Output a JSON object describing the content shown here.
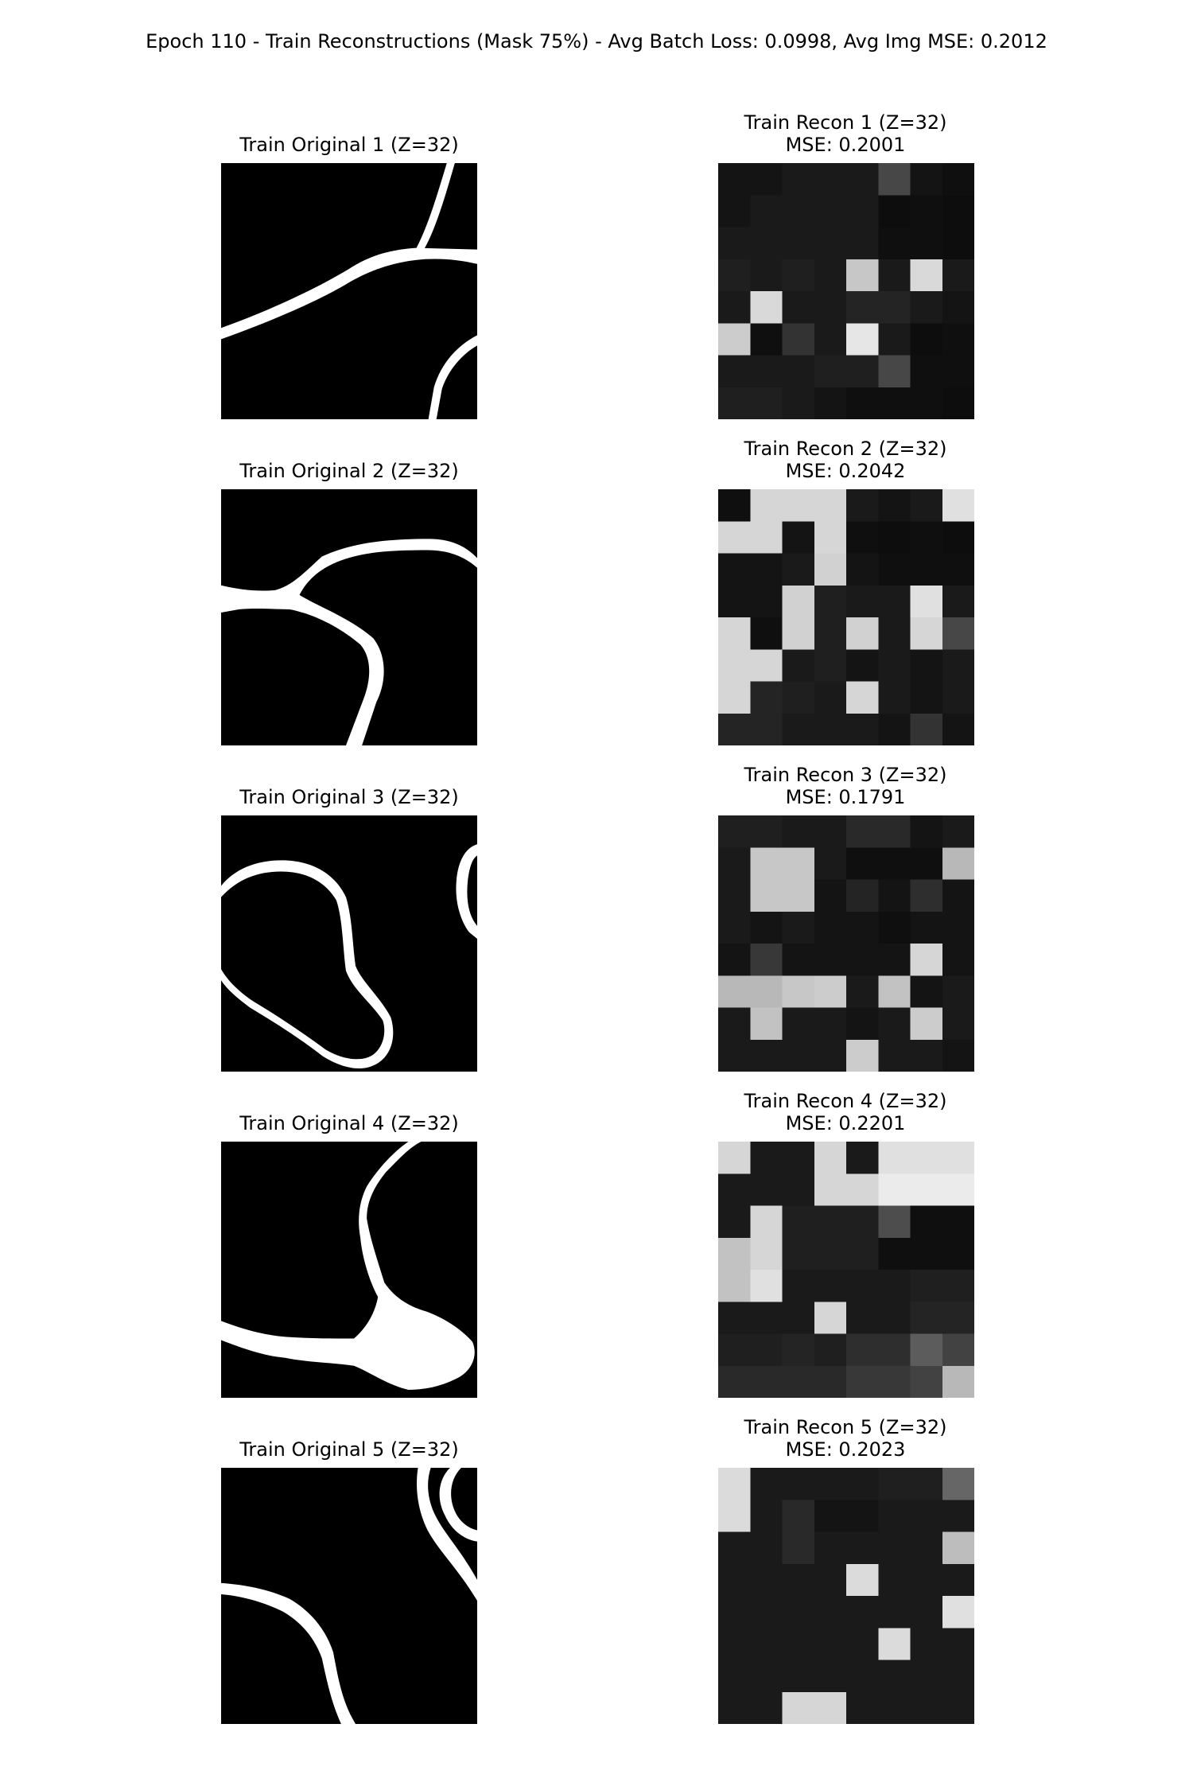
{
  "figure": {
    "title": "Epoch 110 - Train Reconstructions (Mask 75%) - Avg Batch Loss: 0.0998, Avg Img MSE: 0.2012"
  },
  "rows": [
    {
      "original": {
        "title": "Train Original 1 (Z=32)"
      },
      "recon": {
        "title": "Train Recon 1 (Z=32)",
        "mse": "MSE: 0.2001",
        "patch_gray": [
          [
            0.08,
            0.08,
            0.1,
            0.1,
            0.1,
            0.28,
            0.08,
            0.06
          ],
          [
            0.08,
            0.1,
            0.1,
            0.1,
            0.1,
            0.05,
            0.06,
            0.05
          ],
          [
            0.1,
            0.1,
            0.1,
            0.1,
            0.1,
            0.06,
            0.06,
            0.05
          ],
          [
            0.12,
            0.1,
            0.12,
            0.1,
            0.78,
            0.1,
            0.85,
            0.1
          ],
          [
            0.1,
            0.85,
            0.1,
            0.1,
            0.14,
            0.14,
            0.1,
            0.08
          ],
          [
            0.8,
            0.06,
            0.2,
            0.1,
            0.9,
            0.1,
            0.05,
            0.06
          ],
          [
            0.1,
            0.1,
            0.1,
            0.12,
            0.12,
            0.28,
            0.06,
            0.06
          ],
          [
            0.12,
            0.12,
            0.1,
            0.08,
            0.06,
            0.06,
            0.06,
            0.05
          ]
        ]
      }
    },
    {
      "original": {
        "title": "Train Original 2 (Z=32)"
      },
      "recon": {
        "title": "Train Recon 2 (Z=32)",
        "mse": "MSE: 0.2042",
        "patch_gray": [
          [
            0.06,
            0.84,
            0.84,
            0.84,
            0.1,
            0.08,
            0.1,
            0.88
          ],
          [
            0.84,
            0.84,
            0.08,
            0.84,
            0.06,
            0.05,
            0.06,
            0.05
          ],
          [
            0.08,
            0.08,
            0.1,
            0.82,
            0.08,
            0.06,
            0.06,
            0.06
          ],
          [
            0.08,
            0.08,
            0.82,
            0.12,
            0.1,
            0.1,
            0.88,
            0.1
          ],
          [
            0.84,
            0.06,
            0.82,
            0.12,
            0.82,
            0.1,
            0.84,
            0.28
          ],
          [
            0.84,
            0.84,
            0.1,
            0.12,
            0.08,
            0.1,
            0.08,
            0.1
          ],
          [
            0.84,
            0.14,
            0.12,
            0.1,
            0.84,
            0.1,
            0.08,
            0.1
          ],
          [
            0.14,
            0.14,
            0.1,
            0.1,
            0.1,
            0.08,
            0.2,
            0.08
          ]
        ]
      }
    },
    {
      "original": {
        "title": "Train Original 3 (Z=32)"
      },
      "recon": {
        "title": "Train Recon 3 (Z=32)",
        "mse": "MSE: 0.1791",
        "patch_gray": [
          [
            0.12,
            0.12,
            0.1,
            0.1,
            0.16,
            0.16,
            0.08,
            0.1
          ],
          [
            0.1,
            0.78,
            0.78,
            0.1,
            0.06,
            0.06,
            0.06,
            0.72
          ],
          [
            0.1,
            0.78,
            0.78,
            0.08,
            0.14,
            0.08,
            0.18,
            0.08
          ],
          [
            0.1,
            0.08,
            0.1,
            0.08,
            0.08,
            0.06,
            0.08,
            0.08
          ],
          [
            0.08,
            0.22,
            0.08,
            0.08,
            0.08,
            0.08,
            0.84,
            0.08
          ],
          [
            0.72,
            0.72,
            0.78,
            0.8,
            0.1,
            0.76,
            0.08,
            0.1
          ],
          [
            0.1,
            0.76,
            0.1,
            0.1,
            0.08,
            0.1,
            0.8,
            0.1
          ],
          [
            0.1,
            0.1,
            0.1,
            0.1,
            0.8,
            0.1,
            0.1,
            0.08
          ]
        ]
      }
    },
    {
      "original": {
        "title": "Train Original 4 (Z=32)"
      },
      "recon": {
        "title": "Train Recon 4 (Z=32)",
        "mse": "MSE: 0.2201",
        "patch_gray": [
          [
            0.84,
            0.1,
            0.1,
            0.84,
            0.1,
            0.88,
            0.88,
            0.88
          ],
          [
            0.1,
            0.1,
            0.1,
            0.84,
            0.84,
            0.92,
            0.92,
            0.92
          ],
          [
            0.1,
            0.84,
            0.12,
            0.12,
            0.12,
            0.3,
            0.06,
            0.06
          ],
          [
            0.76,
            0.84,
            0.12,
            0.12,
            0.12,
            0.06,
            0.06,
            0.06
          ],
          [
            0.76,
            0.88,
            0.1,
            0.1,
            0.1,
            0.1,
            0.12,
            0.12
          ],
          [
            0.1,
            0.1,
            0.1,
            0.84,
            0.1,
            0.1,
            0.14,
            0.14
          ],
          [
            0.12,
            0.12,
            0.14,
            0.12,
            0.18,
            0.18,
            0.36,
            0.26
          ],
          [
            0.16,
            0.16,
            0.16,
            0.16,
            0.22,
            0.22,
            0.26,
            0.72
          ]
        ]
      }
    },
    {
      "original": {
        "title": "Train Original 5 (Z=32)"
      },
      "recon": {
        "title": "Train Recon 5 (Z=32)",
        "mse": "MSE: 0.2023",
        "patch_gray": [
          [
            0.86,
            0.1,
            0.1,
            0.1,
            0.1,
            0.12,
            0.12,
            0.4
          ],
          [
            0.86,
            0.1,
            0.16,
            0.08,
            0.08,
            0.1,
            0.1,
            0.1
          ],
          [
            0.1,
            0.1,
            0.16,
            0.1,
            0.1,
            0.1,
            0.1,
            0.74
          ],
          [
            0.1,
            0.1,
            0.1,
            0.1,
            0.86,
            0.1,
            0.1,
            0.1
          ],
          [
            0.1,
            0.1,
            0.1,
            0.1,
            0.1,
            0.1,
            0.1,
            0.88
          ],
          [
            0.1,
            0.1,
            0.1,
            0.1,
            0.1,
            0.86,
            0.1,
            0.1
          ],
          [
            0.1,
            0.1,
            0.1,
            0.1,
            0.1,
            0.1,
            0.1,
            0.1
          ],
          [
            0.1,
            0.1,
            0.84,
            0.84,
            0.1,
            0.1,
            0.1,
            0.1
          ]
        ]
      }
    }
  ]
}
